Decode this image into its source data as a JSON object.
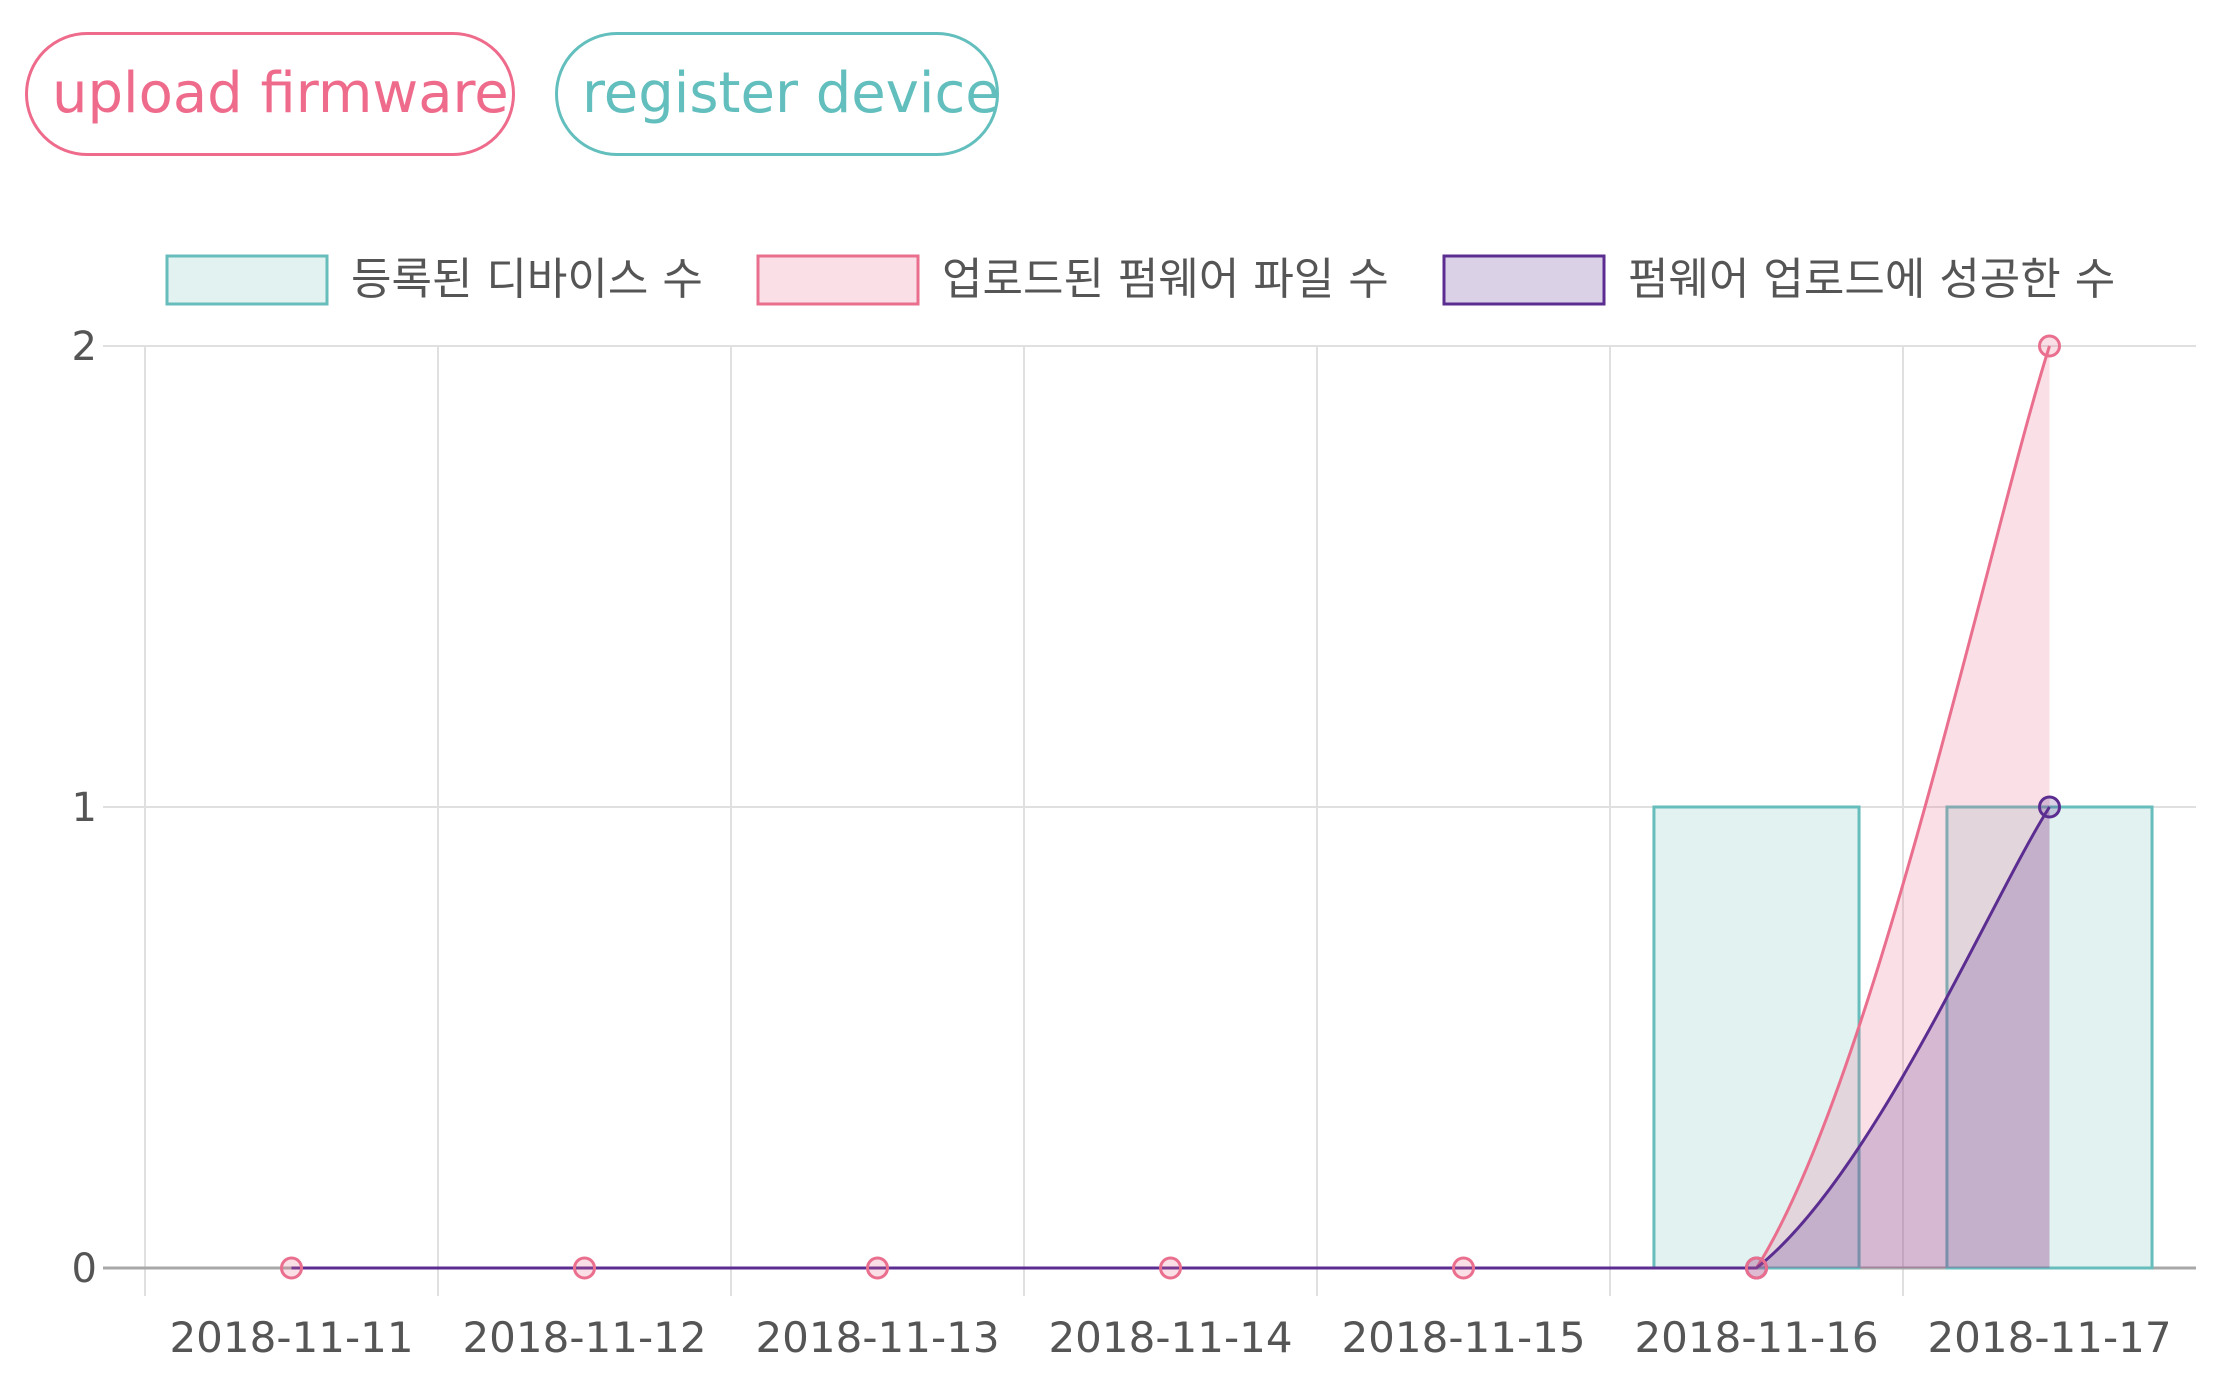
{
  "buttons": {
    "upload_label": "upload firmware",
    "register_label": "register device"
  },
  "colors": {
    "devices_border": "#67bdbb",
    "devices_fill": "rgba(103,189,187,0.20)",
    "uploaded_border": "#ea6f8e",
    "uploaded_fill": "rgba(234,111,142,0.22)",
    "success_border": "#5c2d91",
    "success_fill": "rgba(92,45,145,0.22)",
    "grid": "#e0e0e0",
    "axis": "#a8a8a8",
    "tick_text": "#555555"
  },
  "chart_data": {
    "type": "bar",
    "categories": [
      "2018-11-11",
      "2018-11-12",
      "2018-11-13",
      "2018-11-14",
      "2018-11-15",
      "2018-11-16",
      "2018-11-17"
    ],
    "ylim": [
      0,
      2
    ],
    "yticks": [
      "0",
      "1",
      "2"
    ],
    "legend_position": "top",
    "series": [
      {
        "name": "등록된 디바이스 수",
        "type": "bar",
        "values": [
          0,
          0,
          0,
          0,
          0,
          1,
          1
        ]
      },
      {
        "name": "업로드된 펌웨어 파일 수",
        "type": "line",
        "values": [
          0,
          0,
          0,
          0,
          0,
          0,
          2
        ]
      },
      {
        "name": "펌웨어 업로드에 성공한 수",
        "type": "line",
        "values": [
          0,
          0,
          0,
          0,
          0,
          0,
          1
        ]
      }
    ]
  }
}
